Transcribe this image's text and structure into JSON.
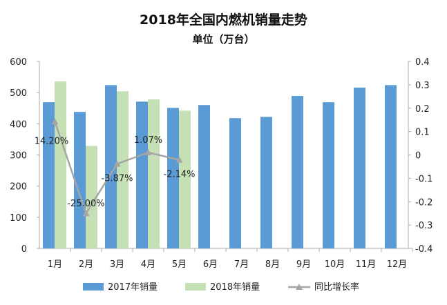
{
  "chart_data": {
    "type": "bar",
    "title": "2018年全国内燃机销量走势",
    "subtitle": "单位（万台）",
    "categories": [
      "1月",
      "2月",
      "3月",
      "4月",
      "5月",
      "6月",
      "7月",
      "8月",
      "9月",
      "10月",
      "11月",
      "12月"
    ],
    "series": [
      {
        "name": "2017年销量",
        "type": "bar",
        "axis": "left",
        "color": "#5b9bd5",
        "values": [
          469,
          438,
          524,
          471,
          451,
          460,
          418,
          422,
          489,
          469,
          516,
          524
        ]
      },
      {
        "name": "2018年销量",
        "type": "bar",
        "axis": "left",
        "color": "#c5e0b4",
        "values": [
          536,
          329,
          504,
          478,
          442,
          null,
          null,
          null,
          null,
          null,
          null,
          null
        ]
      },
      {
        "name": "同比增长率",
        "type": "line",
        "axis": "right",
        "color": "#a5a5a5",
        "values": [
          0.142,
          -0.25,
          -0.0387,
          0.0107,
          -0.0214,
          null,
          null,
          null,
          null,
          null,
          null,
          null
        ],
        "labels": [
          "14.20%",
          "-25.00%",
          "-3.87%",
          "1.07%",
          "-2.14%"
        ]
      }
    ],
    "ylim": [
      0,
      600
    ],
    "yticks": [
      "0",
      "100",
      "200",
      "300",
      "400",
      "500",
      "600"
    ],
    "y2lim": [
      -0.4,
      0.4
    ],
    "y2ticks": [
      "-0.4",
      "-0.3",
      "-0.2",
      "-0.1",
      "0",
      "0.1",
      "0.2",
      "0.3",
      "0.4"
    ],
    "legend": "bottom",
    "grid": false
  }
}
